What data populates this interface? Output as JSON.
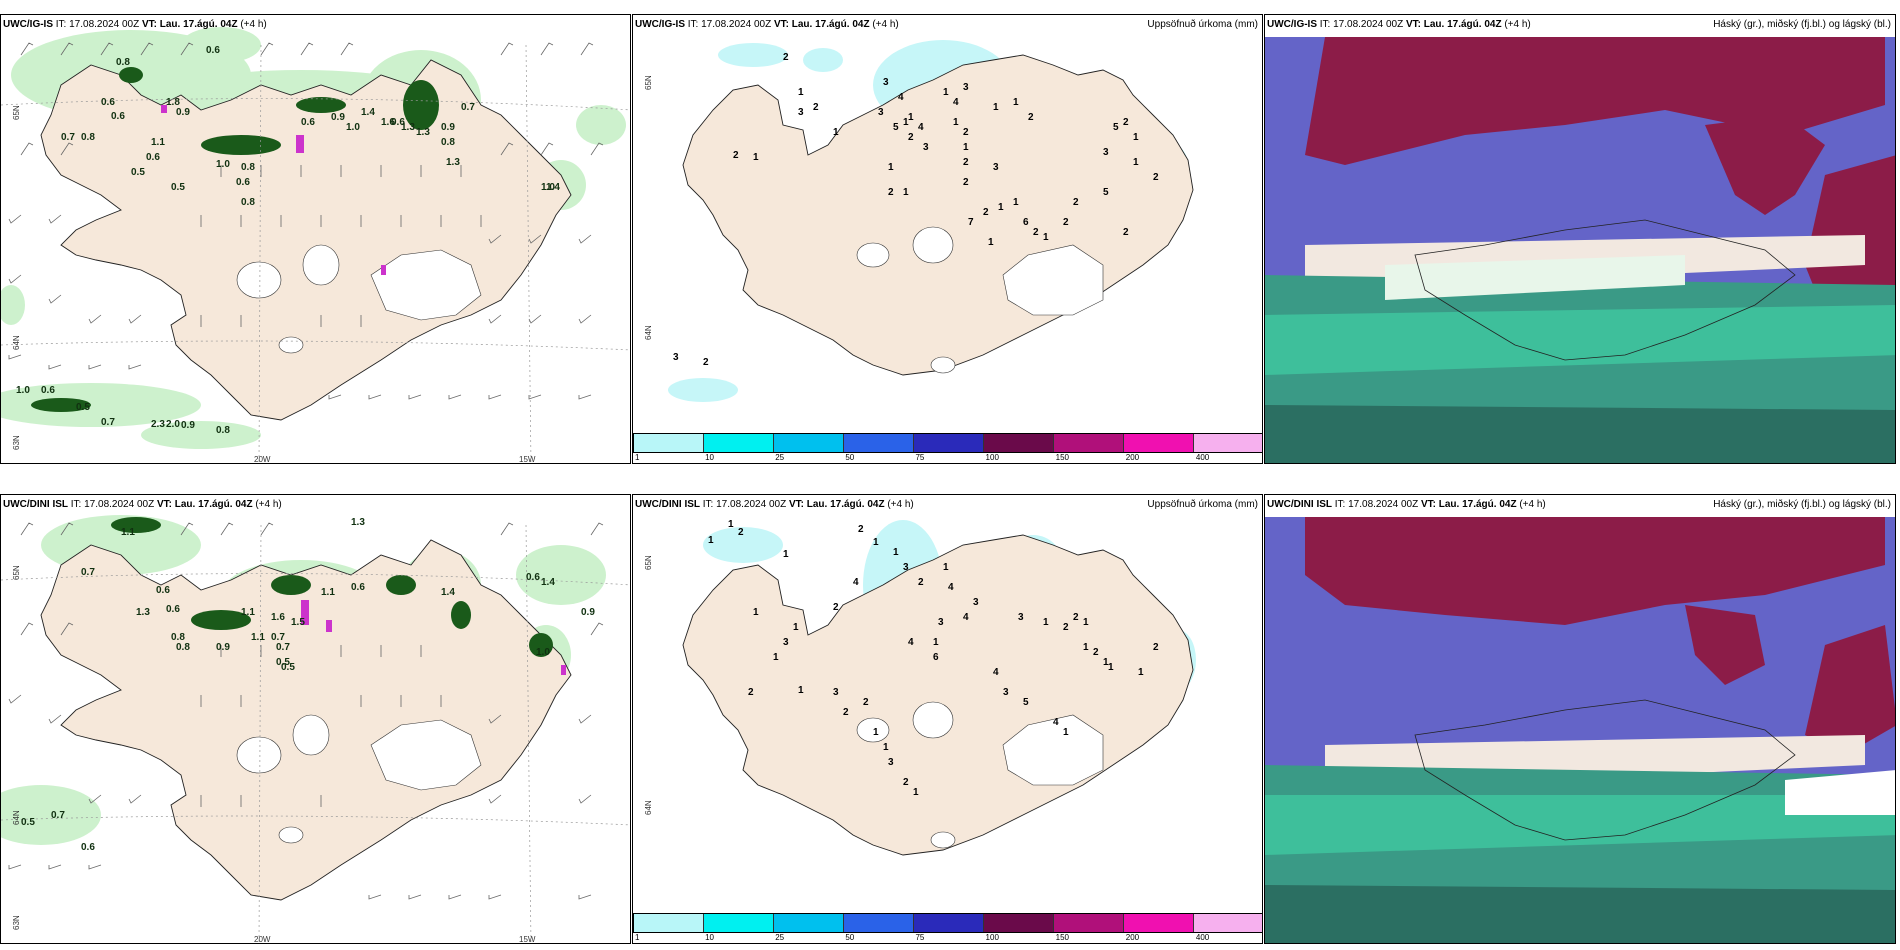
{
  "top_row": {
    "wind": {
      "model": "UWC/IG-IS",
      "it_label": "IT:",
      "it": "17.08.2024 00Z",
      "vt_label": "VT:",
      "vt": "Lau. 17.ágú. 04Z",
      "offset": "(+4 h)",
      "labels": [
        "0.6",
        "0.8",
        "0.6",
        "0.6",
        "0.9",
        "0.8",
        "1.8",
        "0.7",
        "0.6",
        "1.1",
        "1.0",
        "0.5",
        "0.5",
        "0.6",
        "0.8",
        "0.6",
        "0.9",
        "1.0",
        "1.4",
        "1.6",
        "1.3",
        "0.6",
        "1.3",
        "0.9",
        "0.8",
        "1.3",
        "0.8",
        "0.7",
        "1.0",
        "1.4",
        "1.0",
        "0.6",
        "0.5",
        "0.7",
        "2.3",
        "2.0",
        "0.9",
        "0.8"
      ],
      "axis": {
        "lat1": "65N",
        "lat2": "64N",
        "lat3": "63N",
        "lon1": "20W",
        "lon2": "15W"
      }
    },
    "precip": {
      "model": "UWC/IG-IS",
      "it_label": "IT:",
      "it": "17.08.2024 00Z",
      "vt_label": "VT:",
      "vt": "Lau. 17.ágú. 04Z",
      "offset": "(+4 h)",
      "title": "Uppsöfnuð úrkoma (mm)",
      "labels": [
        "2",
        "1",
        "3",
        "2",
        "1",
        "1",
        "2",
        "3",
        "4",
        "1",
        "1",
        "1",
        "2",
        "1",
        "3",
        "5",
        "2",
        "4",
        "3",
        "1",
        "4",
        "1",
        "3",
        "3",
        "2",
        "1",
        "2",
        "2",
        "1",
        "1",
        "2",
        "2",
        "7",
        "1",
        "1",
        "1",
        "6",
        "2",
        "1",
        "2",
        "2",
        "5",
        "3",
        "5",
        "2",
        "1",
        "1",
        "2",
        "2",
        "3",
        "2"
      ],
      "axis": {
        "lat1": "65N",
        "lat2": "64N"
      }
    },
    "cloud": {
      "model": "UWC/IG-IS",
      "it_label": "IT:",
      "it": "17.08.2024 00Z",
      "vt_label": "VT:",
      "vt": "Lau. 17.ágú. 04Z",
      "offset": "(+4 h)",
      "title": "Háský (gr.), miðský (fj.bl.) og lágský (bl.)"
    }
  },
  "bottom_row": {
    "wind": {
      "model": "UWC/DINI ISL",
      "it_label": "IT:",
      "it": "17.08.2024 00Z",
      "vt_label": "VT:",
      "vt": "Lau. 17.ágú. 04Z",
      "offset": "(+4 h)",
      "labels": [
        "1.1",
        "0.7",
        "0.6",
        "0.6",
        "1.3",
        "0.8",
        "0.8",
        "0.9",
        "1.1",
        "1.6",
        "0.7",
        "0.5",
        "0.5",
        "1.5",
        "1.1",
        "0.7",
        "0.6",
        "1.4",
        "0.9",
        "1.0",
        "0.5",
        "0.7",
        "0.6",
        "0.5",
        "1.1",
        "1.3",
        "0.6",
        "1.4"
      ],
      "axis": {
        "lat1": "65N",
        "lat2": "64N",
        "lat3": "63N",
        "lon1": "20W",
        "lon2": "15W"
      }
    },
    "precip": {
      "model": "UWC/DINI ISL",
      "it_label": "IT:",
      "it": "17.08.2024 00Z",
      "vt_label": "VT:",
      "vt": "Lau. 17.ágú. 04Z",
      "offset": "(+4 h)",
      "title": "Uppsöfnuð úrkoma (mm)",
      "labels": [
        "1",
        "1",
        "2",
        "1",
        "1",
        "2",
        "1",
        "1",
        "3",
        "2",
        "1",
        "4",
        "3",
        "4",
        "3",
        "1",
        "6",
        "4",
        "4",
        "2",
        "1",
        "3",
        "2",
        "1",
        "1",
        "3",
        "2",
        "2",
        "1",
        "1",
        "3",
        "2",
        "1",
        "3",
        "1",
        "2",
        "2",
        "1",
        "4",
        "3",
        "5",
        "4",
        "1",
        "1",
        "2",
        "1",
        "1",
        "1",
        "2"
      ],
      "axis": {
        "lat1": "65N",
        "lat2": "64N"
      }
    },
    "cloud": {
      "model": "UWC/DINI ISL",
      "it_label": "IT:",
      "it": "17.08.2024 00Z",
      "vt_label": "VT:",
      "vt": "Lau. 17.ágú. 04Z",
      "offset": "(+4 h)",
      "title": "Háský (gr.), miðský (fj.bl.) og lágský (bl.)"
    }
  },
  "legend": {
    "ticks": [
      "1",
      "10",
      "25",
      "50",
      "75",
      "100",
      "150",
      "200",
      "400"
    ],
    "colors": [
      "#b8f6f8",
      "#00f0f0",
      "#00c0ee",
      "#2a62e8",
      "#2a2aba",
      "#6a0a4a",
      "#b0107a",
      "#f010b0",
      "#f6b0ee"
    ]
  },
  "colors": {
    "land": "#f6e8da",
    "ice": "#ffffff",
    "wind_green_light": "#c8f0c8",
    "wind_green_dark": "#1a5a1a",
    "precip_cyan": "#c6f6f8",
    "cloud_high": "#8c1c48",
    "cloud_mid": "#6060c8",
    "cloud_low": "#3aa890"
  }
}
